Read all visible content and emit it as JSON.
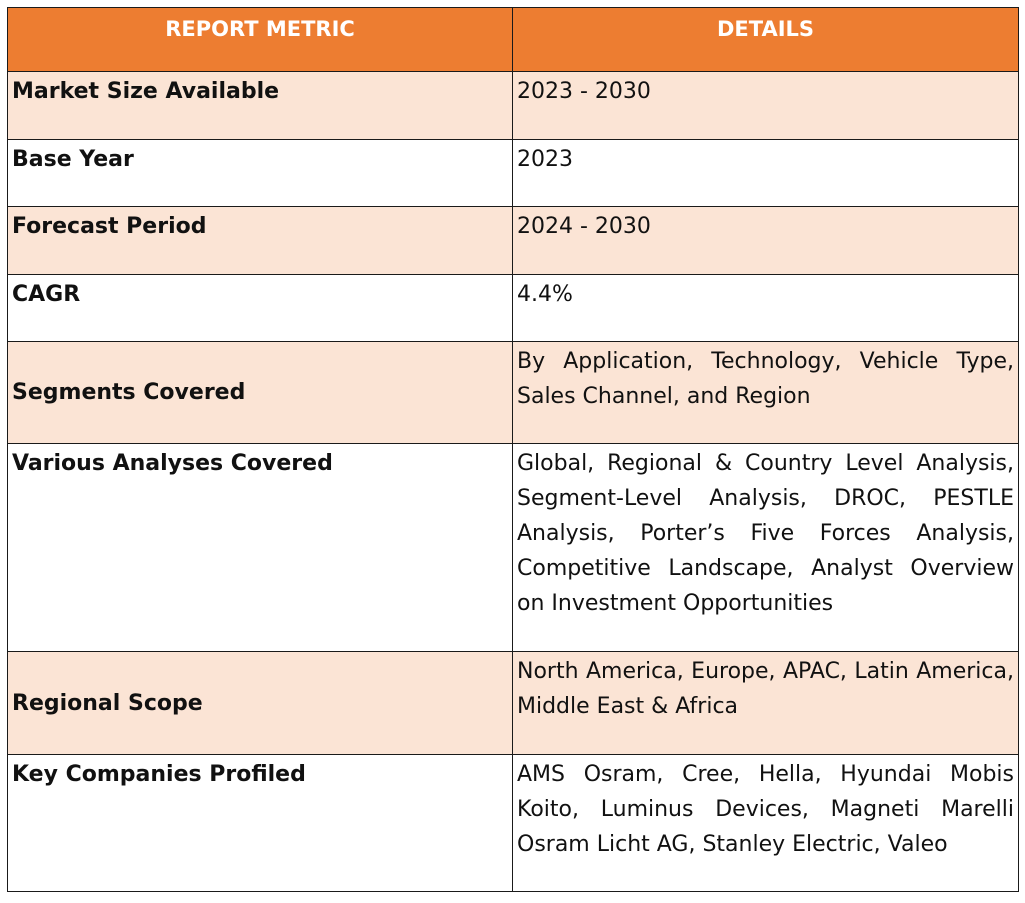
{
  "header": {
    "metric_label": "REPORT METRIC",
    "details_label": "DETAILS"
  },
  "rows": [
    {
      "metric": "Market Size Available",
      "details": "2023 - 2030"
    },
    {
      "metric": "Base Year",
      "details": "2023"
    },
    {
      "metric": "Forecast Period",
      "details": "2024 - 2030"
    },
    {
      "metric": "CAGR",
      "details": "4.4%"
    },
    {
      "metric": "Segments Covered",
      "details": "By Application, Technology, Vehicle Type, Sales Channel, and Region"
    },
    {
      "metric": "Various Analyses Covered",
      "details": "Global, Regional & Country Level Analysis, Segment-Level Analysis, DROC, PESTLE Analysis, Porter’s Five Forces Analysis, Competitive Landscape, Analyst Overview on Investment Opportunities"
    },
    {
      "metric": "Regional Scope",
      "details": "North America, Europe, APAC, Latin America, Middle East & Africa"
    },
    {
      "metric": "Key Companies Profiled",
      "details": "AMS Osram, Cree, Hella, Hyundai Mobis Koito, Luminus Devices, Magneti Marelli Osram Licht AG, Stanley Electric, Valeo"
    }
  ],
  "colors": {
    "header_bg": "#ed7d31",
    "header_text": "#ffffff",
    "band_peach": "#fbe4d5",
    "border": "#1a1a1a"
  }
}
